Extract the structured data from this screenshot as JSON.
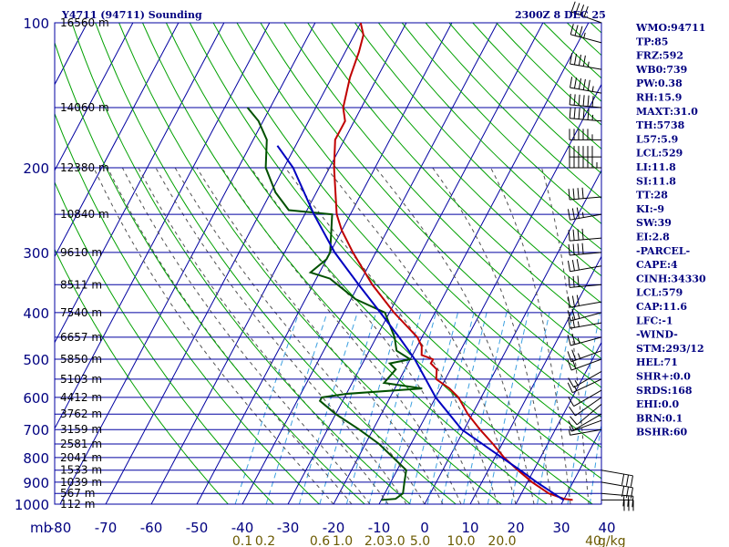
{
  "header": {
    "title": "Y4711 (94711) Sounding",
    "time": "2300Z 8 DEC 25"
  },
  "axes": {
    "pressure_unit": "mb",
    "mixing_ratio_unit": "g/kg"
  },
  "indices": [
    "WMO:94711",
    "TP:85",
    "FRZ:592",
    "WB0:739",
    "PW:0.38",
    "RH:15.9",
    "MAXT:31.0",
    "TH:5738",
    "L57:5.9",
    "LCL:529",
    "LI:11.8",
    "SI:11.8",
    "TT:28",
    "KI:-9",
    "SW:39",
    "EI:2.8",
    "-PARCEL-",
    "CAPE:4",
    "CINH:34330",
    "LCL:579",
    "CAP:11.6",
    "LFC:-1",
    "-WIND-",
    "STM:293/12",
    "HEL:71",
    "SHR+:0.0",
    "SRDS:168",
    "EHI:0.0",
    "BRN:0.1",
    "BSHR:60"
  ],
  "colors": {
    "grid": "#0000a0",
    "dry_adiabat": "#00a000",
    "moist_adiabat": "#505050",
    "mixing_ratio": "#3ca0e0",
    "temperature": "#c00000",
    "dewpoint": "#005000",
    "parcel": "#0000c0",
    "text": "#000080",
    "mixing_label": "#6b5a00"
  },
  "chart_data": {
    "type": "line",
    "title": "Y4711 (94711) Sounding",
    "xlim": [
      -80,
      40
    ],
    "ylim": [
      1000,
      100
    ],
    "log_y": true,
    "grid": true,
    "pressure_ticks": [
      100,
      200,
      300,
      400,
      500,
      600,
      700,
      800,
      900,
      1000
    ],
    "temperature_ticks": [
      -80,
      -70,
      -60,
      -50,
      -40,
      -30,
      -20,
      -10,
      0,
      10,
      20,
      30,
      40
    ],
    "temperature_tick_labels": [
      "-80",
      "-70",
      "-60",
      "-50",
      "-40",
      "-30",
      "-20",
      "-10",
      "0",
      "10",
      "20",
      "30",
      "40"
    ],
    "mixing_ratio_labels": [
      {
        "text": "0.1",
        "x": -40
      },
      {
        "text": "0.2",
        "x": -35
      },
      {
        "text": "0.6",
        "x": -23
      },
      {
        "text": "1.0",
        "x": -18
      },
      {
        "text": "2.0",
        "x": -11
      },
      {
        "text": "3.0",
        "x": -6.5
      },
      {
        "text": "5.0",
        "x": -1
      },
      {
        "text": "10.0",
        "x": 8
      },
      {
        "text": "20.0",
        "x": 17
      },
      {
        "text": "40",
        "x": 37
      }
    ],
    "mixing_ratio_unit_label": "g/kg",
    "heights": [
      {
        "p": 100,
        "text": "16560 m"
      },
      {
        "p": 150,
        "text": "14060 m"
      },
      {
        "p": 200,
        "text": "12380 m"
      },
      {
        "p": 250,
        "text": "10840 m"
      },
      {
        "p": 300,
        "text": "9610 m"
      },
      {
        "p": 350,
        "text": "8511 m"
      },
      {
        "p": 400,
        "text": "7540 m"
      },
      {
        "p": 450,
        "text": "6657 m"
      },
      {
        "p": 500,
        "text": "5850 m"
      },
      {
        "p": 550,
        "text": "5103 m"
      },
      {
        "p": 600,
        "text": "4412 m"
      },
      {
        "p": 650,
        "text": "3762 m"
      },
      {
        "p": 700,
        "text": "3159 m"
      },
      {
        "p": 750,
        "text": "2581 m"
      },
      {
        "p": 800,
        "text": "2041 m"
      },
      {
        "p": 850,
        "text": "1533 m"
      },
      {
        "p": 900,
        "text": "1039 m"
      },
      {
        "p": 950,
        "text": "567 m"
      },
      {
        "p": 1000,
        "text": "112 m"
      }
    ],
    "series": [
      {
        "key": "temperature",
        "points": [
          {
            "p": 980,
            "t": 32
          },
          {
            "p": 975,
            "t": 30
          },
          {
            "p": 950,
            "t": 26
          },
          {
            "p": 900,
            "t": 21
          },
          {
            "p": 850,
            "t": 16.5
          },
          {
            "p": 800,
            "t": 12
          },
          {
            "p": 750,
            "t": 8
          },
          {
            "p": 700,
            "t": 3.5
          },
          {
            "p": 650,
            "t": -1
          },
          {
            "p": 600,
            "t": -5
          },
          {
            "p": 575,
            "t": -8
          },
          {
            "p": 550,
            "t": -12
          },
          {
            "p": 525,
            "t": -13
          },
          {
            "p": 510,
            "t": -15
          },
          {
            "p": 500,
            "t": -15
          },
          {
            "p": 490,
            "t": -18
          },
          {
            "p": 470,
            "t": -19
          },
          {
            "p": 450,
            "t": -21
          },
          {
            "p": 400,
            "t": -29
          },
          {
            "p": 350,
            "t": -37
          },
          {
            "p": 300,
            "t": -45
          },
          {
            "p": 270,
            "t": -50
          },
          {
            "p": 250,
            "t": -53
          },
          {
            "p": 200,
            "t": -59
          },
          {
            "p": 175,
            "t": -62
          },
          {
            "p": 160,
            "t": -62
          },
          {
            "p": 150,
            "t": -64
          },
          {
            "p": 130,
            "t": -66
          },
          {
            "p": 115,
            "t": -67
          },
          {
            "p": 106,
            "t": -68
          },
          {
            "p": 100,
            "t": -70
          }
        ]
      },
      {
        "key": "dewpoint",
        "points": [
          {
            "p": 980,
            "t": -10
          },
          {
            "p": 975,
            "t": -7
          },
          {
            "p": 950,
            "t": -6
          },
          {
            "p": 900,
            "t": -7
          },
          {
            "p": 850,
            "t": -8
          },
          {
            "p": 750,
            "t": -17
          },
          {
            "p": 700,
            "t": -23
          },
          {
            "p": 650,
            "t": -30
          },
          {
            "p": 610,
            "t": -35
          },
          {
            "p": 600,
            "t": -35
          },
          {
            "p": 590,
            "t": -30
          },
          {
            "p": 575,
            "t": -14
          },
          {
            "p": 560,
            "t": -23
          },
          {
            "p": 525,
            "t": -22
          },
          {
            "p": 510,
            "t": -24
          },
          {
            "p": 500,
            "t": -20
          },
          {
            "p": 480,
            "t": -24
          },
          {
            "p": 450,
            "t": -26
          },
          {
            "p": 400,
            "t": -31
          },
          {
            "p": 375,
            "t": -39
          },
          {
            "p": 340,
            "t": -47
          },
          {
            "p": 330,
            "t": -52
          },
          {
            "p": 310,
            "t": -50
          },
          {
            "p": 300,
            "t": -50
          },
          {
            "p": 250,
            "t": -54
          },
          {
            "p": 245,
            "t": -64
          },
          {
            "p": 225,
            "t": -69
          },
          {
            "p": 200,
            "t": -74
          },
          {
            "p": 175,
            "t": -77
          },
          {
            "p": 160,
            "t": -81
          },
          {
            "p": 150,
            "t": -85
          }
        ]
      },
      {
        "key": "parcel",
        "points": [
          {
            "p": 980,
            "t": 30
          },
          {
            "p": 900,
            "t": 22
          },
          {
            "p": 850,
            "t": 17
          },
          {
            "p": 800,
            "t": 11.5
          },
          {
            "p": 700,
            "t": -0.5
          },
          {
            "p": 600,
            "t": -10
          },
          {
            "p": 500,
            "t": -19
          },
          {
            "p": 450,
            "t": -25
          },
          {
            "p": 400,
            "t": -32
          },
          {
            "p": 350,
            "t": -40
          },
          {
            "p": 300,
            "t": -49
          },
          {
            "p": 250,
            "t": -58
          },
          {
            "p": 200,
            "t": -68
          },
          {
            "p": 180,
            "t": -74
          }
        ]
      }
    ],
    "wind_barbs": [
      {
        "p": 100,
        "dir": 290,
        "spd": 40
      },
      {
        "p": 110,
        "dir": 285,
        "spd": 35
      },
      {
        "p": 125,
        "dir": 280,
        "spd": 45
      },
      {
        "p": 140,
        "dir": 280,
        "spd": 55
      },
      {
        "p": 150,
        "dir": 275,
        "spd": 60
      },
      {
        "p": 160,
        "dir": 275,
        "spd": 55
      },
      {
        "p": 175,
        "dir": 270,
        "spd": 55
      },
      {
        "p": 190,
        "dir": 270,
        "spd": 60
      },
      {
        "p": 200,
        "dir": 270,
        "spd": 65
      },
      {
        "p": 230,
        "dir": 265,
        "spd": 40
      },
      {
        "p": 250,
        "dir": 260,
        "spd": 35
      },
      {
        "p": 280,
        "dir": 265,
        "spd": 40
      },
      {
        "p": 300,
        "dir": 265,
        "spd": 40
      },
      {
        "p": 320,
        "dir": 260,
        "spd": 30
      },
      {
        "p": 350,
        "dir": 265,
        "spd": 30
      },
      {
        "p": 380,
        "dir": 260,
        "spd": 30
      },
      {
        "p": 400,
        "dir": 255,
        "spd": 25
      },
      {
        "p": 420,
        "dir": 260,
        "spd": 25
      },
      {
        "p": 450,
        "dir": 255,
        "spd": 25
      },
      {
        "p": 480,
        "dir": 250,
        "spd": 25
      },
      {
        "p": 500,
        "dir": 250,
        "spd": 20
      },
      {
        "p": 530,
        "dir": 240,
        "spd": 15
      },
      {
        "p": 550,
        "dir": 245,
        "spd": 15
      },
      {
        "p": 580,
        "dir": 240,
        "spd": 10
      },
      {
        "p": 600,
        "dir": 235,
        "spd": 10
      },
      {
        "p": 620,
        "dir": 230,
        "spd": 10
      },
      {
        "p": 650,
        "dir": 240,
        "spd": 10
      },
      {
        "p": 670,
        "dir": 250,
        "spd": 5
      },
      {
        "p": 700,
        "dir": 260,
        "spd": 5
      },
      {
        "p": 850,
        "dir": 100,
        "spd": 30
      },
      {
        "p": 900,
        "dir": 100,
        "spd": 30
      },
      {
        "p": 950,
        "dir": 95,
        "spd": 30
      },
      {
        "p": 980,
        "dir": 90,
        "spd": 30
      }
    ]
  }
}
